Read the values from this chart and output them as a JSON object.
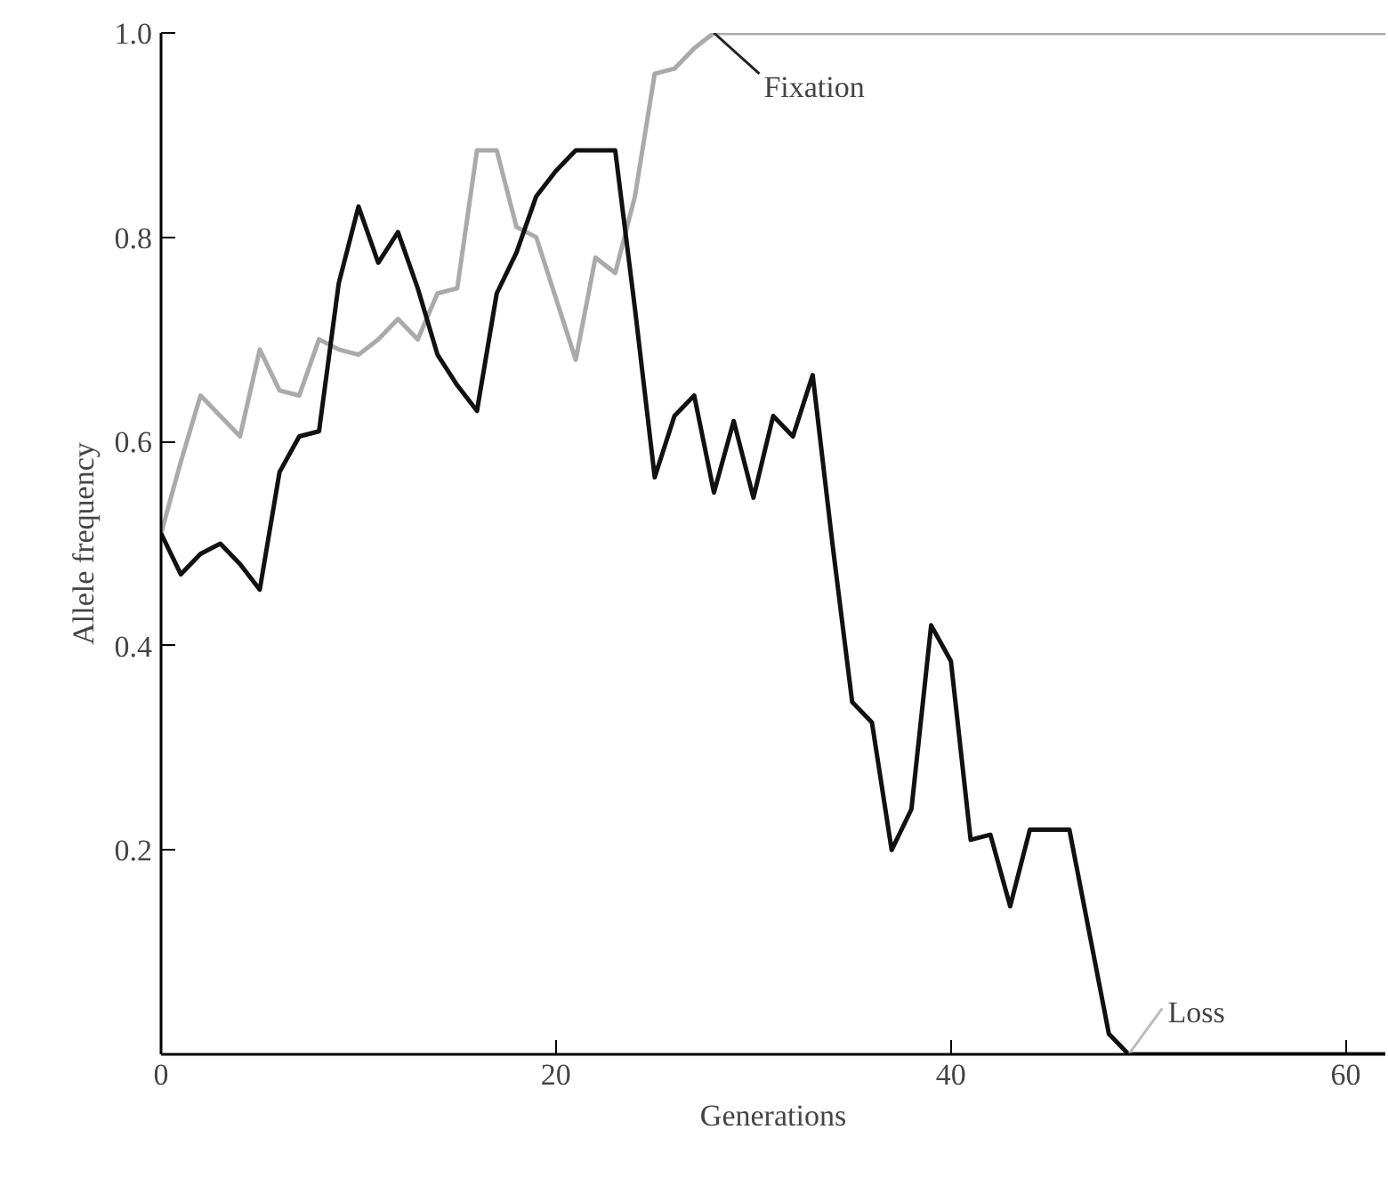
{
  "chart_data": {
    "type": "line",
    "xlabel": "Generations",
    "ylabel": "Allele frequency",
    "xlim": [
      0,
      62
    ],
    "ylim": [
      0,
      1
    ],
    "xticks": [
      0,
      20,
      40,
      60
    ],
    "yticks": [
      0.2,
      0.4,
      0.6,
      0.8,
      {
        "value": 1,
        "label": "1.0"
      }
    ],
    "grid": false,
    "marker": "none",
    "line_style": "solid",
    "series": [
      {
        "color": "#aaaaaa",
        "x": [
          0,
          1,
          2,
          3,
          4,
          5,
          6,
          7,
          8,
          9,
          10,
          11,
          12,
          13,
          14,
          15,
          16,
          17,
          18,
          19,
          20,
          21,
          22,
          23,
          24,
          25,
          26,
          27,
          28,
          62
        ],
        "values": [
          0.51,
          0.58,
          0.645,
          0.625,
          0.605,
          0.69,
          0.65,
          0.645,
          0.7,
          0.69,
          0.685,
          0.7,
          0.72,
          0.7,
          0.745,
          0.75,
          0.885,
          0.885,
          0.81,
          0.8,
          0.74,
          0.68,
          0.78,
          0.765,
          0.84,
          0.96,
          0.965,
          0.985,
          1.0,
          1.0
        ]
      },
      {
        "color": "#111111",
        "x": [
          0,
          1,
          2,
          3,
          4,
          5,
          6,
          7,
          8,
          9,
          10,
          11,
          12,
          13,
          14,
          15,
          16,
          17,
          18,
          19,
          20,
          21,
          22,
          23,
          24,
          25,
          26,
          27,
          28,
          29,
          30,
          31,
          32,
          33,
          34,
          35,
          36,
          37,
          38,
          39,
          40,
          41,
          42,
          43,
          44,
          45,
          46,
          47,
          48,
          49,
          62
        ],
        "values": [
          0.51,
          0.47,
          0.49,
          0.5,
          0.48,
          0.455,
          0.57,
          0.605,
          0.61,
          0.755,
          0.83,
          0.775,
          0.805,
          0.75,
          0.685,
          0.655,
          0.63,
          0.745,
          0.785,
          0.84,
          0.865,
          0.885,
          0.885,
          0.885,
          0.73,
          0.565,
          0.625,
          0.645,
          0.55,
          0.62,
          0.545,
          0.625,
          0.605,
          0.665,
          0.5,
          0.345,
          0.325,
          0.2,
          0.24,
          0.42,
          0.385,
          0.21,
          0.215,
          0.145,
          0.22,
          0.22,
          0.22,
          0.12,
          0.02,
          0.0,
          0.0
        ]
      }
    ],
    "annotations": [
      {
        "text": "Fixation",
        "x": 28,
        "y": 1.0
      },
      {
        "text": "Loss",
        "x": 49,
        "y": 0.0
      }
    ]
  }
}
